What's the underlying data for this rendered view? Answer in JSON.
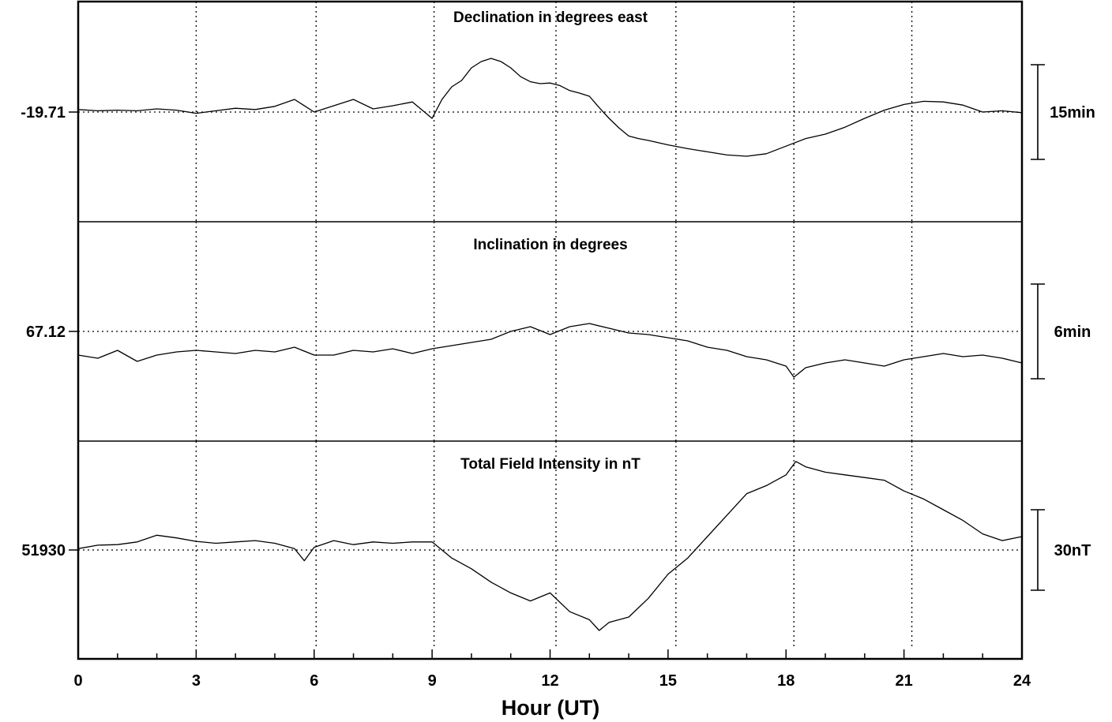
{
  "chart_data": {
    "type": "line",
    "xlabel": "Hour (UT)",
    "xlim": [
      0,
      24
    ],
    "x_ticks": [
      0,
      3,
      6,
      9,
      12,
      15,
      18,
      21,
      24
    ],
    "x_tick_labels": [
      "0",
      "3",
      "6",
      "9",
      "12",
      "15",
      "18",
      "21",
      "24"
    ],
    "grid": "dotted",
    "panels": [
      {
        "id": "declination",
        "title": "Declination in degrees east",
        "reference_label": "-19.71",
        "scale_label": "15min",
        "scale_span": 15,
        "unit": "arcmin",
        "grid_x": [
          3,
          6.05,
          9.05,
          12.15,
          15.2,
          18.2,
          21.2
        ],
        "series": {
          "x": [
            0,
            0.5,
            1,
            1.5,
            2,
            2.5,
            3,
            3.5,
            4,
            4.5,
            5,
            5.5,
            6,
            6.5,
            7,
            7.5,
            8,
            8.5,
            9,
            9.25,
            9.5,
            9.75,
            10,
            10.25,
            10.5,
            10.75,
            11,
            11.25,
            11.5,
            11.75,
            12,
            12.25,
            12.5,
            12.75,
            13,
            13.25,
            13.5,
            13.75,
            14,
            14.25,
            14.5,
            15,
            15.5,
            16,
            16.5,
            17,
            17.5,
            18,
            18.5,
            19,
            19.5,
            20,
            20.5,
            21,
            21.5,
            22,
            22.5,
            23,
            23.5,
            24
          ],
          "y": [
            0.4,
            0.2,
            0.3,
            0.2,
            0.5,
            0.3,
            -0.2,
            0.2,
            0.6,
            0.4,
            0.9,
            2.0,
            0.0,
            1.0,
            2.0,
            0.5,
            1.0,
            1.6,
            -1.0,
            2.0,
            4.0,
            5.0,
            7.0,
            8.0,
            8.5,
            8.0,
            7.0,
            5.6,
            4.8,
            4.5,
            4.6,
            4.2,
            3.4,
            3.0,
            2.5,
            0.7,
            -1.0,
            -2.5,
            -3.8,
            -4.2,
            -4.5,
            -5.2,
            -5.8,
            -6.3,
            -6.8,
            -7.0,
            -6.6,
            -5.4,
            -4.2,
            -3.5,
            -2.4,
            -1.0,
            0.3,
            1.2,
            1.7,
            1.6,
            1.1,
            0.0,
            0.2,
            -0.1
          ]
        }
      },
      {
        "id": "inclination",
        "title": "Inclination in degrees",
        "reference_label": "67.12",
        "scale_label": "6min",
        "scale_span": 6,
        "unit": "arcmin",
        "grid_x": [
          3,
          6.05,
          9.05,
          12.15,
          15.2,
          18.2,
          21.2
        ],
        "series": {
          "x": [
            0,
            0.5,
            1,
            1.5,
            2,
            2.5,
            3,
            3.5,
            4,
            4.5,
            5,
            5.5,
            6,
            6.5,
            7,
            7.5,
            8,
            8.5,
            9,
            9.5,
            10,
            10.5,
            11,
            11.5,
            12,
            12.5,
            13,
            13.5,
            14,
            14.5,
            15,
            15.5,
            16,
            16.5,
            17,
            17.5,
            18,
            18.2,
            18.5,
            19,
            19.5,
            20,
            20.5,
            21,
            21.5,
            22,
            22.5,
            23,
            23.5,
            24
          ],
          "y": [
            -1.5,
            -1.7,
            -1.2,
            -1.9,
            -1.5,
            -1.3,
            -1.2,
            -1.3,
            -1.4,
            -1.2,
            -1.3,
            -1.0,
            -1.5,
            -1.5,
            -1.2,
            -1.3,
            -1.1,
            -1.4,
            -1.1,
            -0.9,
            -0.7,
            -0.5,
            0.0,
            0.3,
            -0.2,
            0.3,
            0.5,
            0.2,
            -0.1,
            -0.2,
            -0.4,
            -0.6,
            -1.0,
            -1.2,
            -1.6,
            -1.8,
            -2.2,
            -2.9,
            -2.3,
            -2.0,
            -1.8,
            -2.0,
            -2.2,
            -1.8,
            -1.6,
            -1.4,
            -1.6,
            -1.5,
            -1.7,
            -2.0
          ]
        }
      },
      {
        "id": "total_field",
        "title": "Total Field Intensity in nT",
        "reference_label": "51930",
        "scale_label": "30nT",
        "scale_span": 30,
        "unit": "nT",
        "grid_x": [
          3,
          6.05,
          9.05,
          12.15,
          15.2,
          18.2,
          21.2
        ],
        "series": {
          "x": [
            0,
            0.5,
            1,
            1.5,
            2,
            2.5,
            3,
            3.5,
            4,
            4.5,
            5,
            5.5,
            5.75,
            6,
            6.5,
            7,
            7.5,
            8,
            8.5,
            9,
            9.5,
            10,
            10.5,
            11,
            11.5,
            12,
            12.5,
            13,
            13.25,
            13.5,
            14,
            14.5,
            15,
            15.5,
            16,
            16.5,
            17,
            17.5,
            18,
            18.25,
            18.5,
            19,
            19.5,
            20,
            20.5,
            21,
            21.5,
            22,
            22.5,
            23,
            23.5,
            24
          ],
          "y": [
            0.5,
            1.8,
            2.0,
            3.0,
            5.5,
            4.5,
            3.2,
            2.5,
            3.0,
            3.5,
            2.5,
            0.5,
            -4.0,
            1.0,
            3.5,
            2.0,
            3.0,
            2.5,
            3.0,
            3.0,
            -3.0,
            -7.0,
            -12.0,
            -16.0,
            -19.0,
            -16.0,
            -23.0,
            -26.0,
            -30.0,
            -27.0,
            -25.0,
            -18.0,
            -9.0,
            -3.0,
            5.0,
            13.0,
            21.0,
            24.0,
            28.0,
            33.0,
            31.0,
            29.0,
            28.0,
            27.0,
            26.0,
            22.0,
            19.0,
            15.0,
            11.0,
            6.0,
            3.5,
            5.0
          ]
        }
      }
    ]
  }
}
